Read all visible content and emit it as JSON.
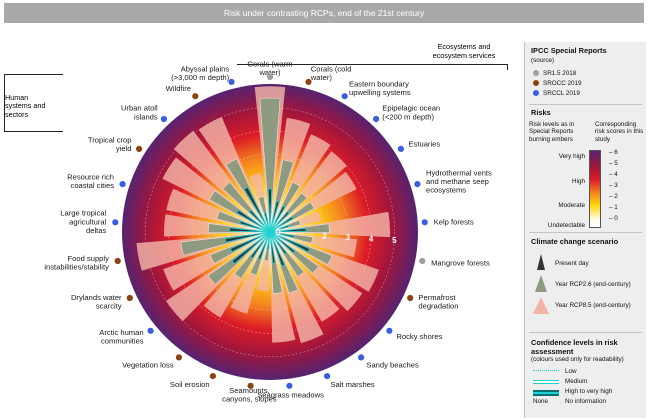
{
  "banner": {
    "title": "Risk under contrasting RCPs, end of the 21st century"
  },
  "groups": {
    "human": "Human systems and sectors",
    "ecosystems": "Ecosystems and ecosystem services"
  },
  "chart_data": {
    "type": "radial",
    "title": "Risk under contrasting RCPs, end of the 21st century",
    "radial_axis": {
      "min": 0,
      "max": 6,
      "ticks": [
        "0",
        "2",
        "3",
        "4",
        "5"
      ]
    },
    "legend_title_reports": "IPCC Special Reports",
    "legend_subtitle_reports": "(source)",
    "reports": [
      {
        "name": "SR1.5 2018",
        "color": "#a0a0a0"
      },
      {
        "name": "SROCC 2019",
        "color": "#8b4513"
      },
      {
        "name": "SRCCL 2019",
        "color": "#3a5ee0"
      }
    ],
    "categories": [
      {
        "label": "Corals (warm water)",
        "report": "SR1.5 2018",
        "present": 1.5,
        "rcp26": 5.4,
        "rcp85": 5.9
      },
      {
        "label": "Corals (cold water)",
        "report": "SROCC 2019",
        "present": 1.0,
        "rcp26": 2.8,
        "rcp85": 4.6
      },
      {
        "label": "Eastern boundary upwelling systems",
        "report": "SRCCL 2019",
        "present": 0.9,
        "rcp26": 2.0,
        "rcp85": 4.2
      },
      {
        "label": "Epipelagic ocean (<200 m depth)",
        "report": "SRCCL 2019",
        "present": 0.8,
        "rcp26": 1.8,
        "rcp85": 4.0
      },
      {
        "label": "Estuaries",
        "report": "SRCCL 2019",
        "present": 0.8,
        "rcp26": 1.8,
        "rcp85": 3.8
      },
      {
        "label": "Hydrothermal vents and methane seep ecosystems",
        "report": "SRCCL 2019",
        "present": 0.5,
        "rcp26": 1.0,
        "rcp85": 1.9
      },
      {
        "label": "Kelp forests",
        "report": "SRCCL 2019",
        "present": 1.2,
        "rcp26": 2.2,
        "rcp85": 4.8
      },
      {
        "label": "Mangrove forests",
        "report": "SR1.5 2018",
        "present": 0.7,
        "rcp26": 1.5,
        "rcp85": 3.4
      },
      {
        "label": "Permafrost degradation",
        "report": "SROCC 2019",
        "present": 1.5,
        "rcp26": 2.5,
        "rcp85": 4.6
      },
      {
        "label": "Rocky shores",
        "report": "SRCCL 2019",
        "present": 1.0,
        "rcp26": 2.2,
        "rcp85": 4.4
      },
      {
        "label": "Sandy beaches",
        "report": "SRCCL 2019",
        "present": 0.8,
        "rcp26": 1.9,
        "rcp85": 4.1
      },
      {
        "label": "Salt marshes",
        "report": "SRCCL 2019",
        "present": 1.2,
        "rcp26": 2.4,
        "rcp85": 4.6
      },
      {
        "label": "Seagrass meadows",
        "report": "SRCCL 2019",
        "present": 1.0,
        "rcp26": 2.3,
        "rcp85": 4.4
      },
      {
        "label": "Seamounts, canyons, slopes",
        "report": "SROCC 2019",
        "present": 0.4,
        "rcp26": 0.9,
        "rcp85": 2.2
      },
      {
        "label": "Soil erosion",
        "report": "SROCC 2019",
        "present": 0.9,
        "rcp26": 1.6,
        "rcp85": 3.3
      },
      {
        "label": "Vegetation loss",
        "report": "SROCC 2019",
        "present": 1.0,
        "rcp26": 2.0,
        "rcp85": 3.9
      },
      {
        "label": "Arctic human communities",
        "report": "SRCCL 2019",
        "present": 1.7,
        "rcp26": 2.9,
        "rcp85": 5.0
      },
      {
        "label": "Drylands water scarcity",
        "report": "SROCC 2019",
        "present": 1.5,
        "rcp26": 2.4,
        "rcp85": 4.5
      },
      {
        "label": "Food supply instabilities/stability",
        "report": "SROCC 2019",
        "present": 1.6,
        "rcp26": 3.5,
        "rcp85": 5.4
      },
      {
        "label": "Large tropical agricultural deltas",
        "report": "SRCCL 2019",
        "present": 1.4,
        "rcp26": 2.3,
        "rcp85": 4.2
      },
      {
        "label": "Resource rich coastal cities",
        "report": "SRCCL 2019",
        "present": 1.0,
        "rcp26": 2.0,
        "rcp85": 4.2
      },
      {
        "label": "Tropical crop yield",
        "report": "SROCC 2019",
        "present": 1.3,
        "rcp26": 2.6,
        "rcp85": 4.8
      },
      {
        "label": "Urban atoll islands",
        "report": "SRCCL 2019",
        "present": 0.9,
        "rcp26": 2.4,
        "rcp85": 5.1
      },
      {
        "label": "Wildfire",
        "report": "SROCC 2019",
        "present": 1.8,
        "rcp26": 3.1,
        "rcp85": 5.0
      },
      {
        "label": "Abyssal plains (>3,000 m depth)",
        "report": "SRCCL 2019",
        "present": 0.5,
        "rcp26": 1.2,
        "rcp85": 2.2
      }
    ],
    "risks_title": "Risks",
    "risk_legend_col1": "Risk levels as in Special Reports burning embers",
    "risk_legend_col2": "Corresponding risk scores in this study",
    "risk_levels": [
      "Very high",
      "High",
      "Moderate",
      "Undetectable"
    ],
    "risk_scores": [
      "6",
      "5",
      "4",
      "3",
      "2",
      "1",
      "0"
    ],
    "scenario_title": "Climate change scenario",
    "scenarios": [
      {
        "name": "Present day",
        "color": "#333333"
      },
      {
        "name": "Year RCP2.6 (end-century)",
        "color": "#8e9b80"
      },
      {
        "name": "Year RCP8.5 (end-century)",
        "color": "#f3b4a8"
      }
    ],
    "confidence_title": "Confidence levels in risk assessment",
    "confidence_subtitle": "(colours used only for readability)",
    "confidence": [
      {
        "name": "Low",
        "style": "dotted"
      },
      {
        "name": "Medium",
        "style": "medium"
      },
      {
        "name": "High to very high",
        "style": "high"
      },
      {
        "name": "No information",
        "key": "None"
      }
    ]
  }
}
